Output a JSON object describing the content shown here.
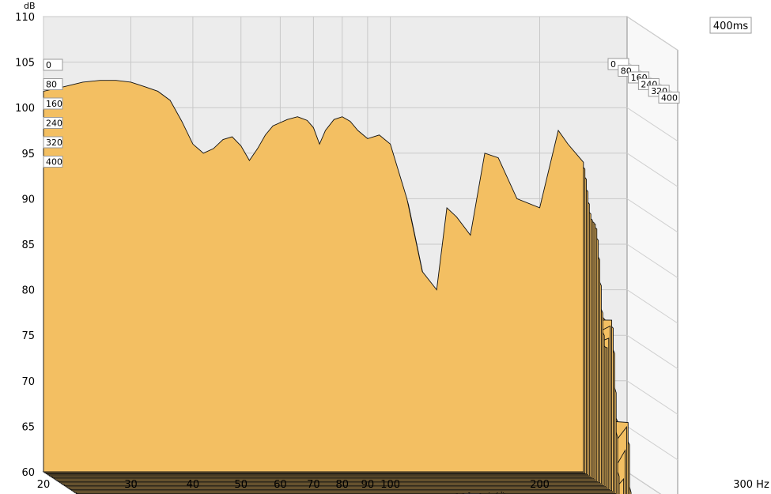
{
  "chart_data": {
    "type": "area",
    "plot": "waterfall",
    "ylabel": "dB",
    "xunit": "Hz",
    "ylim": [
      60,
      110
    ],
    "xlim": [
      20,
      300
    ],
    "xscale": "log",
    "grid": true,
    "time_window_label": "400ms",
    "x_ticks": [
      "20",
      "30",
      "40",
      "50",
      "60",
      "70",
      "80",
      "90",
      "100",
      "200",
      "300 Hz"
    ],
    "y_ticks": [
      "60",
      "65",
      "70",
      "75",
      "80",
      "85",
      "90",
      "95",
      "100",
      "105",
      "110"
    ],
    "slice_labels": [
      "0",
      "80",
      "160",
      "240",
      "320",
      "400"
    ],
    "fill_color": "#f3bf62",
    "line_color": "#111111",
    "series": [
      {
        "time_ms": 0,
        "points": [
          [
            20,
            101.8
          ],
          [
            22,
            102.3
          ],
          [
            24,
            102.8
          ],
          [
            26,
            103.0
          ],
          [
            28,
            103.0
          ],
          [
            30,
            102.8
          ],
          [
            32,
            102.3
          ],
          [
            34,
            101.8
          ],
          [
            36,
            100.8
          ],
          [
            38,
            98.5
          ],
          [
            40,
            96.0
          ],
          [
            42,
            95.0
          ],
          [
            44,
            95.5
          ],
          [
            46,
            96.5
          ],
          [
            48,
            96.8
          ],
          [
            50,
            95.8
          ],
          [
            52,
            94.2
          ],
          [
            54,
            95.5
          ],
          [
            56,
            97.0
          ],
          [
            58,
            98.0
          ],
          [
            62,
            98.7
          ],
          [
            65,
            99.0
          ],
          [
            68,
            98.6
          ],
          [
            70,
            97.8
          ],
          [
            72,
            96.0
          ],
          [
            74,
            97.5
          ],
          [
            77,
            98.7
          ],
          [
            80,
            99.0
          ],
          [
            83,
            98.5
          ],
          [
            86,
            97.5
          ],
          [
            90,
            96.6
          ],
          [
            95,
            97.0
          ],
          [
            100,
            96.0
          ],
          [
            108,
            90.0
          ],
          [
            116,
            82.0
          ],
          [
            124,
            80.0
          ],
          [
            130,
            89.0
          ],
          [
            136,
            88.0
          ],
          [
            145,
            86.0
          ],
          [
            155,
            95.0
          ],
          [
            165,
            94.5
          ],
          [
            180,
            90.0
          ],
          [
            200,
            89.0
          ],
          [
            218,
            97.5
          ],
          [
            228,
            96.0
          ],
          [
            245,
            94.0
          ]
        ]
      }
    ]
  }
}
